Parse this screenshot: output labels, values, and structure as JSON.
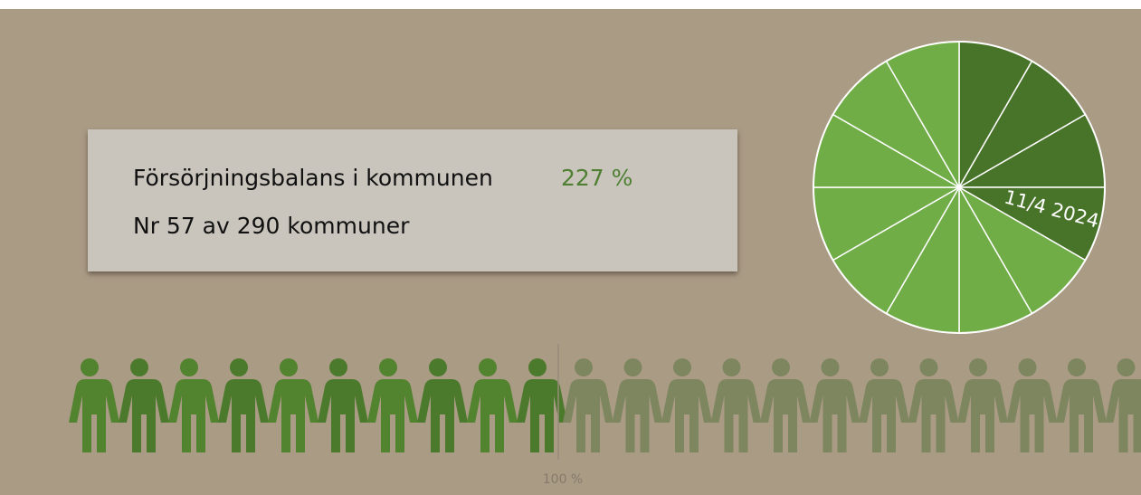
{
  "panel": {
    "label": "Försörjningsbalans i kommunen",
    "value": "227 %",
    "rank": "Nr 57 av 290 kommuner"
  },
  "clock": {
    "date": "11/4 2024"
  },
  "scale": {
    "label": "100 %"
  }
}
